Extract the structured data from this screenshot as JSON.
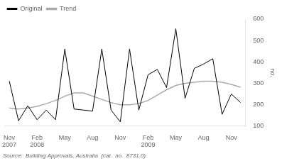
{
  "chart_data": {
    "type": "line",
    "categories": [
      "Nov\n2007",
      null,
      null,
      "Feb\n2008",
      null,
      null,
      "May",
      null,
      null,
      "Aug",
      null,
      null,
      "Nov",
      null,
      null,
      "Feb\n2009",
      null,
      null,
      "May",
      null,
      null,
      "Aug",
      null,
      null,
      "Nov",
      null
    ],
    "series": [
      {
        "name": "Original",
        "color": "#000000",
        "values": [
          310,
          125,
          195,
          130,
          175,
          130,
          460,
          180,
          175,
          170,
          460,
          175,
          120,
          460,
          175,
          340,
          365,
          280,
          555,
          230,
          370,
          390,
          415,
          155,
          250,
          210
        ]
      },
      {
        "name": "Trend",
        "color": "#aaaaaa",
        "values": [
          185,
          180,
          185,
          192,
          205,
          220,
          240,
          255,
          255,
          240,
          225,
          210,
          200,
          200,
          205,
          220,
          245,
          270,
          290,
          300,
          305,
          310,
          310,
          305,
          295,
          282
        ]
      }
    ],
    "ylim": [
      100,
      600
    ],
    "yticks": [
      100,
      200,
      300,
      400,
      500,
      600
    ],
    "ylabel": "no.",
    "annotations": [
      "Source:  Building Approvals, Australia  (cat.  no.  8731.0)."
    ],
    "legend": "upper left",
    "grid": false
  }
}
